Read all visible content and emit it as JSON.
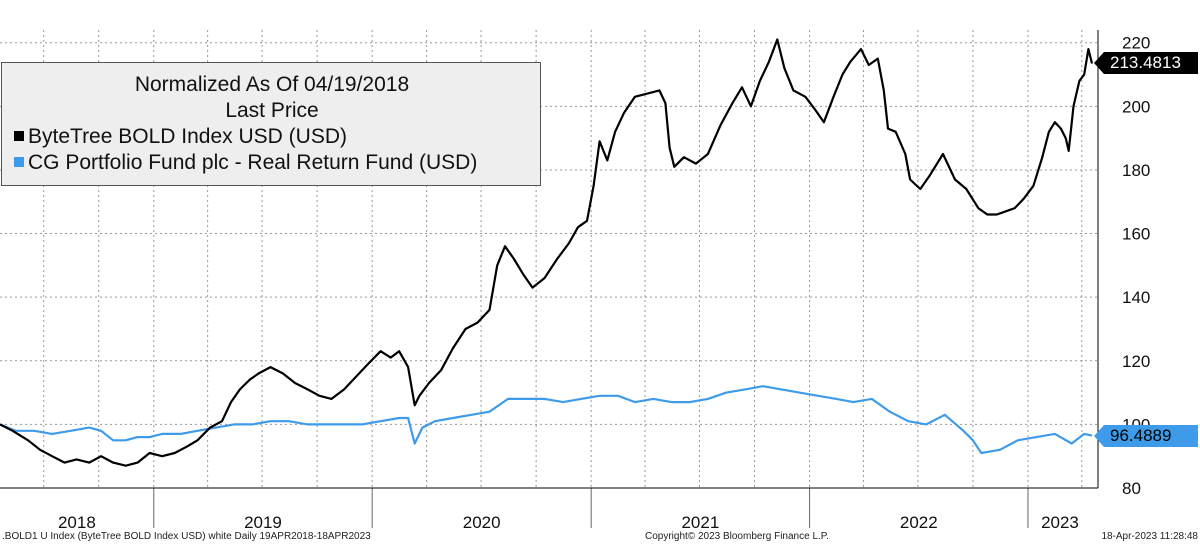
{
  "chart_data": {
    "type": "line",
    "legend": {
      "title_line1": "Normalized As Of 04/19/2018",
      "title_line2": "Last Price",
      "placement": "top-left"
    },
    "ylim": [
      80,
      224
    ],
    "y_ticks": [
      80,
      100,
      120,
      140,
      160,
      180,
      200,
      220
    ],
    "y_tick_labels": [
      "80",
      "100",
      "120",
      "140",
      "160",
      "180",
      "200",
      "220"
    ],
    "x_range": [
      "2018-04-19",
      "2023-04-18"
    ],
    "year_labels": [
      "2018",
      "2019",
      "2020",
      "2021",
      "2022",
      "2023"
    ],
    "grid": true,
    "series": [
      {
        "name": "ByteTree BOLD Index USD (USD)",
        "color": "#000000",
        "last_value_label": "213.4813",
        "points": [
          [
            "2018-04-19",
            100
          ],
          [
            "2018-05-10",
            98
          ],
          [
            "2018-06-05",
            95
          ],
          [
            "2018-06-25",
            92
          ],
          [
            "2018-07-15",
            90
          ],
          [
            "2018-08-05",
            88
          ],
          [
            "2018-08-25",
            89
          ],
          [
            "2018-09-15",
            88
          ],
          [
            "2018-10-05",
            90
          ],
          [
            "2018-10-25",
            88
          ],
          [
            "2018-11-15",
            87
          ],
          [
            "2018-12-05",
            88
          ],
          [
            "2018-12-25",
            91
          ],
          [
            "2019-01-15",
            90
          ],
          [
            "2019-02-05",
            91
          ],
          [
            "2019-02-25",
            93
          ],
          [
            "2019-03-15",
            95
          ],
          [
            "2019-04-05",
            99
          ],
          [
            "2019-04-25",
            101
          ],
          [
            "2019-05-10",
            107
          ],
          [
            "2019-05-25",
            111
          ],
          [
            "2019-06-10",
            114
          ],
          [
            "2019-06-25",
            116
          ],
          [
            "2019-07-15",
            118
          ],
          [
            "2019-08-05",
            116
          ],
          [
            "2019-08-25",
            113
          ],
          [
            "2019-09-15",
            111
          ],
          [
            "2019-10-05",
            109
          ],
          [
            "2019-10-25",
            108
          ],
          [
            "2019-11-15",
            111
          ],
          [
            "2019-12-05",
            115
          ],
          [
            "2019-12-25",
            119
          ],
          [
            "2020-01-15",
            123
          ],
          [
            "2020-02-01",
            121
          ],
          [
            "2020-02-15",
            123
          ],
          [
            "2020-03-01",
            118
          ],
          [
            "2020-03-12",
            106
          ],
          [
            "2020-03-20",
            109
          ],
          [
            "2020-04-05",
            113
          ],
          [
            "2020-04-25",
            117
          ],
          [
            "2020-05-15",
            124
          ],
          [
            "2020-06-05",
            130
          ],
          [
            "2020-06-25",
            132
          ],
          [
            "2020-07-15",
            136
          ],
          [
            "2020-07-28",
            150
          ],
          [
            "2020-08-10",
            156
          ],
          [
            "2020-08-25",
            152
          ],
          [
            "2020-09-10",
            147
          ],
          [
            "2020-09-25",
            143
          ],
          [
            "2020-10-15",
            146
          ],
          [
            "2020-11-05",
            152
          ],
          [
            "2020-11-25",
            157
          ],
          [
            "2020-12-10",
            162
          ],
          [
            "2020-12-25",
            164
          ],
          [
            "2021-01-05",
            175
          ],
          [
            "2021-01-15",
            189
          ],
          [
            "2021-01-28",
            183
          ],
          [
            "2021-02-10",
            192
          ],
          [
            "2021-02-25",
            198
          ],
          [
            "2021-03-15",
            203
          ],
          [
            "2021-04-05",
            204
          ],
          [
            "2021-04-25",
            205
          ],
          [
            "2021-05-05",
            201
          ],
          [
            "2021-05-12",
            187
          ],
          [
            "2021-05-20",
            181
          ],
          [
            "2021-06-05",
            184
          ],
          [
            "2021-06-25",
            182
          ],
          [
            "2021-07-15",
            185
          ],
          [
            "2021-08-05",
            194
          ],
          [
            "2021-08-25",
            201
          ],
          [
            "2021-09-10",
            206
          ],
          [
            "2021-09-25",
            200
          ],
          [
            "2021-10-10",
            208
          ],
          [
            "2021-10-25",
            214
          ],
          [
            "2021-11-08",
            221
          ],
          [
            "2021-11-20",
            212
          ],
          [
            "2021-12-05",
            205
          ],
          [
            "2021-12-25",
            203
          ],
          [
            "2022-01-10",
            199
          ],
          [
            "2022-01-25",
            195
          ],
          [
            "2022-02-10",
            203
          ],
          [
            "2022-02-25",
            210
          ],
          [
            "2022-03-10",
            214
          ],
          [
            "2022-03-28",
            218
          ],
          [
            "2022-04-10",
            213
          ],
          [
            "2022-04-25",
            215
          ],
          [
            "2022-05-05",
            205
          ],
          [
            "2022-05-12",
            193
          ],
          [
            "2022-05-25",
            192
          ],
          [
            "2022-06-10",
            185
          ],
          [
            "2022-06-18",
            177
          ],
          [
            "2022-07-05",
            174
          ],
          [
            "2022-07-20",
            178
          ],
          [
            "2022-08-12",
            185
          ],
          [
            "2022-09-01",
            177
          ],
          [
            "2022-09-20",
            174
          ],
          [
            "2022-10-10",
            168
          ],
          [
            "2022-10-25",
            166
          ],
          [
            "2022-11-10",
            166
          ],
          [
            "2022-11-25",
            167
          ],
          [
            "2022-12-10",
            168
          ],
          [
            "2022-12-25",
            171
          ],
          [
            "2023-01-10",
            175
          ],
          [
            "2023-01-25",
            184
          ],
          [
            "2023-02-05",
            192
          ],
          [
            "2023-02-15",
            195
          ],
          [
            "2023-02-25",
            193
          ],
          [
            "2023-03-05",
            190
          ],
          [
            "2023-03-10",
            186
          ],
          [
            "2023-03-18",
            200
          ],
          [
            "2023-03-28",
            208
          ],
          [
            "2023-04-05",
            210
          ],
          [
            "2023-04-12",
            218
          ],
          [
            "2023-04-18",
            213.4813
          ]
        ]
      },
      {
        "name": "CG Portfolio Fund plc - Real Return Fund (USD)",
        "color": "#3d9be9",
        "last_value_label": "96.4889",
        "points": [
          [
            "2018-04-19",
            100
          ],
          [
            "2018-05-15",
            98
          ],
          [
            "2018-06-15",
            98
          ],
          [
            "2018-07-15",
            97
          ],
          [
            "2018-08-15",
            98
          ],
          [
            "2018-09-15",
            99
          ],
          [
            "2018-10-05",
            98
          ],
          [
            "2018-10-25",
            95
          ],
          [
            "2018-11-15",
            95
          ],
          [
            "2018-12-05",
            96
          ],
          [
            "2018-12-25",
            96
          ],
          [
            "2019-01-15",
            97
          ],
          [
            "2019-02-15",
            97
          ],
          [
            "2019-03-15",
            98
          ],
          [
            "2019-04-15",
            99
          ],
          [
            "2019-05-15",
            100
          ],
          [
            "2019-06-15",
            100
          ],
          [
            "2019-07-15",
            101
          ],
          [
            "2019-08-15",
            101
          ],
          [
            "2019-09-15",
            100
          ],
          [
            "2019-10-15",
            100
          ],
          [
            "2019-11-15",
            100
          ],
          [
            "2019-12-15",
            100
          ],
          [
            "2020-01-15",
            101
          ],
          [
            "2020-02-15",
            102
          ],
          [
            "2020-03-01",
            102
          ],
          [
            "2020-03-12",
            94
          ],
          [
            "2020-03-25",
            99
          ],
          [
            "2020-04-15",
            101
          ],
          [
            "2020-05-15",
            102
          ],
          [
            "2020-06-15",
            103
          ],
          [
            "2020-07-15",
            104
          ],
          [
            "2020-08-15",
            108
          ],
          [
            "2020-09-15",
            108
          ],
          [
            "2020-10-15",
            108
          ],
          [
            "2020-11-15",
            107
          ],
          [
            "2020-12-15",
            108
          ],
          [
            "2021-01-15",
            109
          ],
          [
            "2021-02-15",
            109
          ],
          [
            "2021-03-15",
            107
          ],
          [
            "2021-04-15",
            108
          ],
          [
            "2021-05-15",
            107
          ],
          [
            "2021-06-15",
            107
          ],
          [
            "2021-07-15",
            108
          ],
          [
            "2021-08-15",
            110
          ],
          [
            "2021-09-15",
            111
          ],
          [
            "2021-10-15",
            112
          ],
          [
            "2021-11-15",
            111
          ],
          [
            "2021-12-15",
            110
          ],
          [
            "2022-01-15",
            109
          ],
          [
            "2022-02-15",
            108
          ],
          [
            "2022-03-15",
            107
          ],
          [
            "2022-04-15",
            108
          ],
          [
            "2022-05-15",
            104
          ],
          [
            "2022-06-15",
            101
          ],
          [
            "2022-07-15",
            100
          ],
          [
            "2022-08-15",
            103
          ],
          [
            "2022-09-15",
            98
          ],
          [
            "2022-10-01",
            95
          ],
          [
            "2022-10-15",
            91
          ],
          [
            "2022-11-15",
            92
          ],
          [
            "2022-12-15",
            95
          ],
          [
            "2023-01-15",
            96
          ],
          [
            "2023-02-15",
            97
          ],
          [
            "2023-03-15",
            94
          ],
          [
            "2023-04-05",
            97
          ],
          [
            "2023-04-18",
            96.4889
          ]
        ]
      }
    ],
    "footer_left": ".BOLD1 U Index (ByteTree BOLD Index USD) white  Daily 19APR2018-18APR2023",
    "footer_center": "Copyright© 2023 Bloomberg Finance L.P.",
    "footer_right": "18-Apr-2023 11:28:48"
  }
}
